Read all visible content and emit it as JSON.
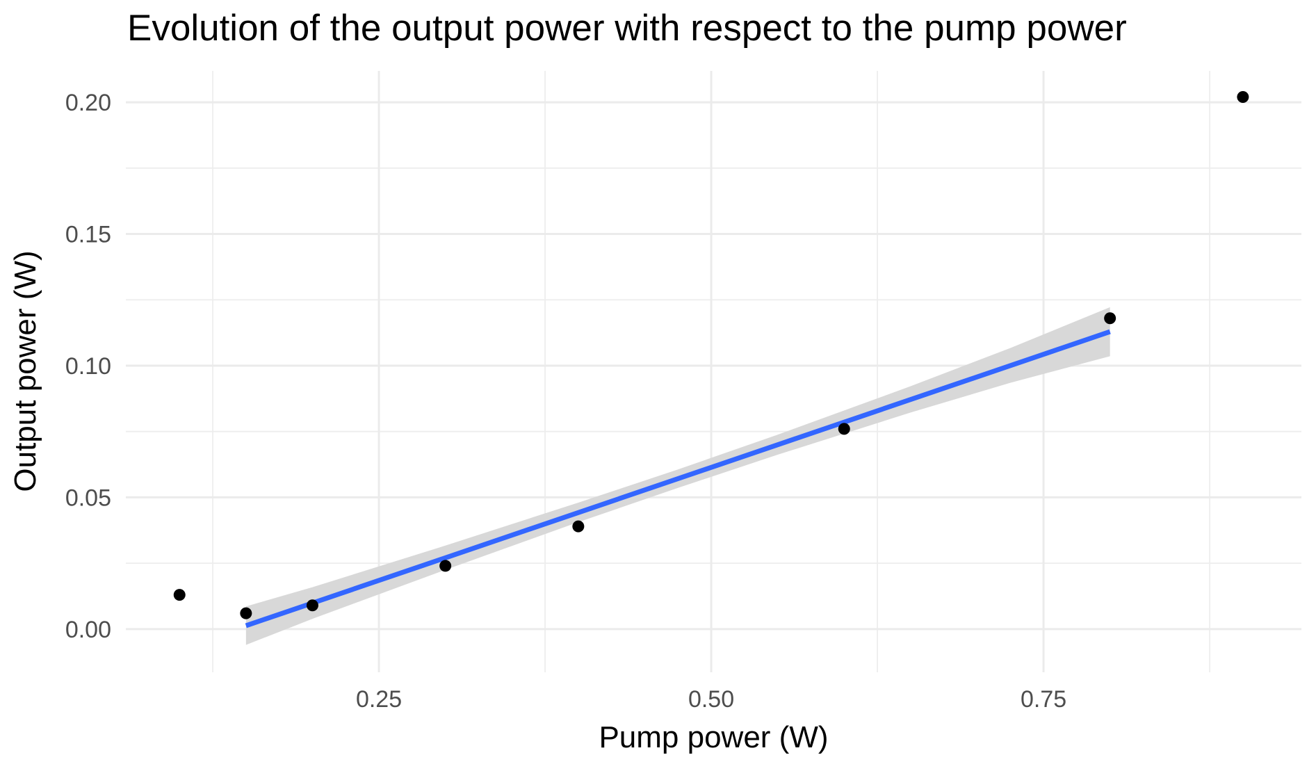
{
  "chart_data": {
    "type": "scatter",
    "title": "Evolution of the output power with respect to the pump power",
    "xlabel": "Pump power (W)",
    "ylabel": "Output power (W)",
    "xlim": [
      0.0596,
      0.944
    ],
    "ylim": [
      -0.0164,
      0.2119
    ],
    "grid": true,
    "legend": false,
    "x_ticks": [
      0.25,
      0.5,
      0.75
    ],
    "x_tick_labels": [
      "0.25",
      "0.50",
      "0.75"
    ],
    "x_minor_ticks": [
      0.125,
      0.375,
      0.625,
      0.875
    ],
    "y_ticks": [
      0.0,
      0.05,
      0.1,
      0.15,
      0.2
    ],
    "y_tick_labels": [
      "0.00",
      "0.05",
      "0.10",
      "0.15",
      "0.20"
    ],
    "y_minor_ticks": [
      0.025,
      0.075,
      0.125,
      0.175
    ],
    "points": [
      [
        0.1,
        0.013
      ],
      [
        0.15,
        0.006
      ],
      [
        0.2,
        0.009
      ],
      [
        0.3,
        0.024
      ],
      [
        0.4,
        0.039
      ],
      [
        0.6,
        0.076
      ],
      [
        0.8,
        0.118
      ],
      [
        0.9,
        0.202
      ]
    ],
    "fit_line": {
      "x": [
        0.15,
        0.8
      ],
      "y": [
        0.0013,
        0.1129
      ]
    },
    "ci_band": {
      "x": [
        0.15,
        0.2,
        0.3,
        0.4,
        0.475,
        0.55,
        0.65,
        0.725,
        0.8
      ],
      "upper": [
        0.0086,
        0.0159,
        0.0317,
        0.048,
        0.0606,
        0.0738,
        0.0922,
        0.1067,
        0.1222
      ],
      "lower": [
        -0.006,
        0.0039,
        0.0225,
        0.0406,
        0.0536,
        0.0662,
        0.0822,
        0.0935,
        0.1036
      ]
    },
    "colors": {
      "point": "#000000",
      "fit_line": "#3366FF",
      "ci_band": "#D8D8D8",
      "grid_major": "#EBEBEB",
      "grid_minor": "#EDEDED",
      "tick_text": "#4D4D4D",
      "title_text": "#000000",
      "background": "#FFFFFF"
    }
  }
}
